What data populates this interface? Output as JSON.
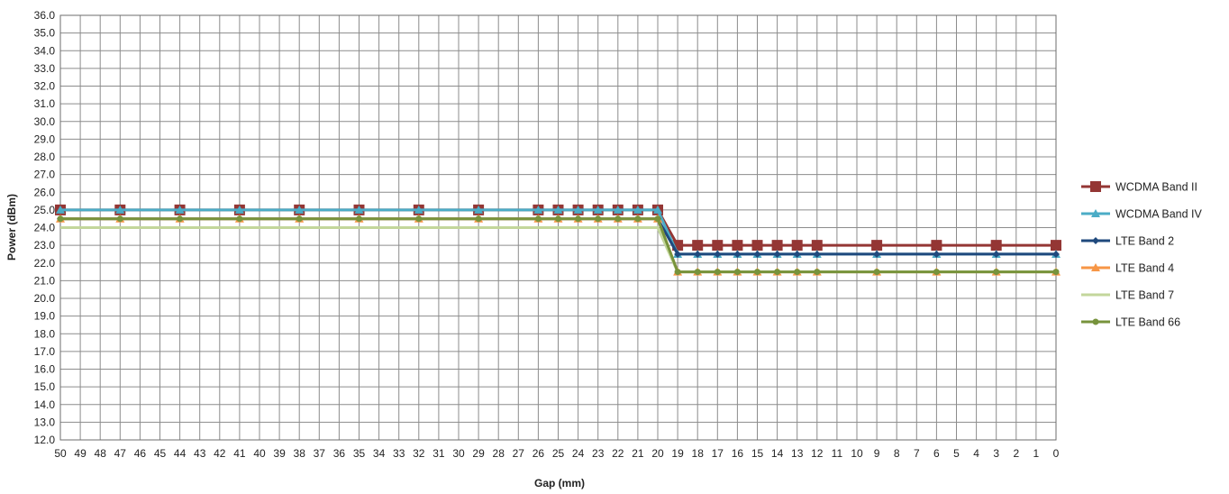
{
  "chart_data": {
    "type": "line",
    "xlabel": "Gap (mm)",
    "ylabel": "Power (dBm)",
    "ylim": [
      12,
      36
    ],
    "y_tick_step": 1,
    "x_axis_reversed": true,
    "x_categories": [
      "50",
      "49",
      "48",
      "47",
      "46",
      "45",
      "44",
      "43",
      "42",
      "41",
      "40",
      "39",
      "38",
      "37",
      "36",
      "35",
      "34",
      "33",
      "32",
      "31",
      "30",
      "29",
      "28",
      "27",
      "26",
      "25",
      "24",
      "23",
      "22",
      "21",
      "20",
      "19",
      "18",
      "17",
      "16",
      "15",
      "14",
      "13",
      "12",
      "11",
      "10",
      "9",
      "8",
      "7",
      "6",
      "5",
      "4",
      "3",
      "2",
      "1",
      "0"
    ],
    "grid": true,
    "legend_position": "right",
    "series": [
      {
        "name": "WCDMA Band II",
        "color": "#943634",
        "marker": "square",
        "x": [
          50,
          47,
          44,
          41,
          38,
          35,
          32,
          29,
          26,
          25,
          24,
          23,
          22,
          21,
          20,
          19,
          18,
          17,
          16,
          15,
          14,
          13,
          12,
          9,
          6,
          3,
          0
        ],
        "y": [
          25,
          25,
          25,
          25,
          25,
          25,
          25,
          25,
          25,
          25,
          25,
          25,
          25,
          25,
          25,
          23,
          23,
          23,
          23,
          23,
          23,
          23,
          23,
          23,
          23,
          23,
          23
        ]
      },
      {
        "name": "WCDMA Band IV",
        "color": "#4BACC6",
        "marker": "triangle",
        "x": [
          50,
          47,
          44,
          41,
          38,
          35,
          32,
          29,
          26,
          25,
          24,
          23,
          22,
          21,
          20,
          19,
          18,
          17,
          16,
          15,
          14,
          13,
          12,
          9,
          6,
          3,
          0
        ],
        "y": [
          25,
          25,
          25,
          25,
          25,
          25,
          25,
          25,
          25,
          25,
          25,
          25,
          25,
          25,
          25,
          22.5,
          22.5,
          22.5,
          22.5,
          22.5,
          22.5,
          22.5,
          22.5,
          22.5,
          22.5,
          22.5,
          22.5
        ]
      },
      {
        "name": "LTE Band 2",
        "color": "#1F497D",
        "marker": "diamond",
        "x": [
          50,
          47,
          44,
          41,
          38,
          35,
          32,
          29,
          26,
          25,
          24,
          23,
          22,
          21,
          20,
          19,
          18,
          17,
          16,
          15,
          14,
          13,
          12,
          9,
          6,
          3,
          0
        ],
        "y": [
          24.5,
          24.5,
          24.5,
          24.5,
          24.5,
          24.5,
          24.5,
          24.5,
          24.5,
          24.5,
          24.5,
          24.5,
          24.5,
          24.5,
          24.5,
          22.5,
          22.5,
          22.5,
          22.5,
          22.5,
          22.5,
          22.5,
          22.5,
          22.5,
          22.5,
          22.5,
          22.5
        ]
      },
      {
        "name": "LTE Band 4",
        "color": "#F79646",
        "marker": "triangle",
        "x": [
          50,
          47,
          44,
          41,
          38,
          35,
          32,
          29,
          26,
          25,
          24,
          23,
          22,
          21,
          20,
          19,
          18,
          17,
          16,
          15,
          14,
          13,
          12,
          9,
          6,
          3,
          0
        ],
        "y": [
          24.5,
          24.5,
          24.5,
          24.5,
          24.5,
          24.5,
          24.5,
          24.5,
          24.5,
          24.5,
          24.5,
          24.5,
          24.5,
          24.5,
          24.5,
          21.5,
          21.5,
          21.5,
          21.5,
          21.5,
          21.5,
          21.5,
          21.5,
          21.5,
          21.5,
          21.5,
          21.5
        ]
      },
      {
        "name": "LTE Band 7",
        "color": "#C3D69B",
        "marker": "line",
        "x": [
          50,
          47,
          44,
          41,
          38,
          35,
          32,
          29,
          26,
          25,
          24,
          23,
          22,
          21,
          20,
          19,
          18,
          17,
          16,
          15,
          14,
          13,
          12,
          9,
          6,
          3,
          0
        ],
        "y": [
          24,
          24,
          24,
          24,
          24,
          24,
          24,
          24,
          24,
          24,
          24,
          24,
          24,
          24,
          24,
          21.5,
          21.5,
          21.5,
          21.5,
          21.5,
          21.5,
          21.5,
          21.5,
          21.5,
          21.5,
          21.5,
          21.5
        ]
      },
      {
        "name": "LTE Band 66",
        "color": "#77933C",
        "marker": "circle",
        "x": [
          50,
          47,
          44,
          41,
          38,
          35,
          32,
          29,
          26,
          25,
          24,
          23,
          22,
          21,
          20,
          19,
          18,
          17,
          16,
          15,
          14,
          13,
          12,
          9,
          6,
          3,
          0
        ],
        "y": [
          24.5,
          24.5,
          24.5,
          24.5,
          24.5,
          24.5,
          24.5,
          24.5,
          24.5,
          24.5,
          24.5,
          24.5,
          24.5,
          24.5,
          24.5,
          21.5,
          21.5,
          21.5,
          21.5,
          21.5,
          21.5,
          21.5,
          21.5,
          21.5,
          21.5,
          21.5,
          21.5
        ]
      }
    ]
  }
}
